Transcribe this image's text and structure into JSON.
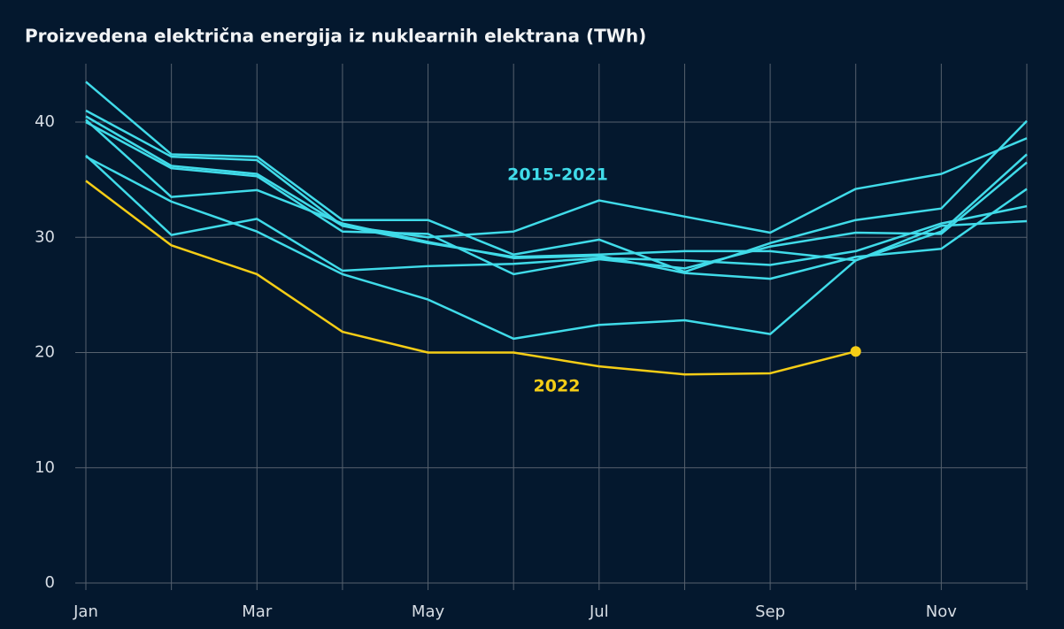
{
  "chart_data": {
    "type": "line",
    "title": "Proizvedena električna energija iz nuklearnih elektrana (TWh)",
    "categories": [
      "Jan",
      null,
      "Mar",
      null,
      "May",
      null,
      "Jul",
      null,
      "Sep",
      null,
      "Nov",
      null
    ],
    "ylim": [
      0,
      40
    ],
    "yticks": [
      0,
      10,
      20,
      30,
      40
    ],
    "grid": true,
    "series": [
      {
        "color": "#40dbe9",
        "values": [
          43.5,
          37.2,
          37.0,
          31.5,
          31.5,
          28.5,
          29.8,
          27.0,
          29.5,
          31.5,
          32.5,
          40.1
        ]
      },
      {
        "color": "#40dbe9",
        "values": [
          41.0,
          37.0,
          36.7,
          31.0,
          30.0,
          30.5,
          33.2,
          31.8,
          30.4,
          34.2,
          35.5,
          38.6
        ]
      },
      {
        "color": "#40dbe9",
        "values": [
          40.5,
          36.2,
          35.5,
          31.0,
          29.5,
          28.3,
          28.5,
          28.8,
          28.8,
          28.0,
          30.5,
          37.2
        ]
      },
      {
        "color": "#40dbe9",
        "values": [
          40.0,
          36.0,
          35.3,
          30.5,
          30.3,
          26.8,
          28.1,
          27.3,
          29.2,
          30.4,
          30.3,
          36.5
        ]
      },
      {
        "color": "#40dbe9",
        "values": [
          40.2,
          33.5,
          34.1,
          31.2,
          29.6,
          28.2,
          28.4,
          26.9,
          26.4,
          28.3,
          29.0,
          34.2
        ]
      },
      {
        "color": "#40dbe9",
        "values": [
          37.1,
          30.2,
          31.6,
          27.1,
          27.5,
          27.7,
          28.2,
          28.0,
          27.6,
          28.8,
          31.2,
          32.7
        ]
      },
      {
        "color": "#40dbe9",
        "values": [
          37.0,
          33.1,
          30.5,
          26.8,
          24.6,
          21.2,
          22.4,
          22.8,
          21.6,
          28.0,
          31.0,
          31.4
        ]
      },
      {
        "color": "#f5cd16",
        "values": [
          34.9,
          29.3,
          26.8,
          21.8,
          20.0,
          20.0,
          18.8,
          18.1,
          18.2,
          20.1,
          null,
          null
        ]
      }
    ],
    "annotations": [
      {
        "text": "2015-2021",
        "color": "#40dbe9"
      },
      {
        "text": "2022",
        "color": "#f5cd16"
      }
    ]
  }
}
